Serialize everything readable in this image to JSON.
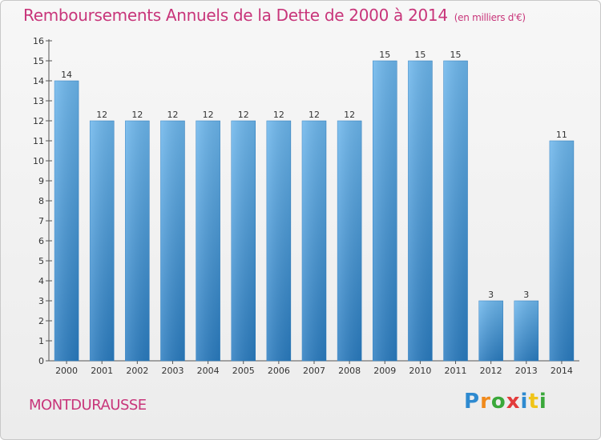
{
  "title": "Remboursements Annuels de la Dette de 2000 à 2014",
  "unit": "(en milliers d'€)",
  "commune": "MONTDURAUSSE",
  "brand": "Proxiti",
  "colors": {
    "bar_light": "#6cb6ec",
    "bar_dark": "#2a7cc0",
    "title": "#c8357a"
  },
  "chart_data": {
    "type": "bar",
    "title": "Remboursements Annuels de la Dette de 2000 à 2014",
    "xlabel": "",
    "ylabel": "",
    "ylim": [
      0,
      16
    ],
    "yticks": [
      0,
      1,
      2,
      3,
      4,
      5,
      6,
      7,
      8,
      9,
      10,
      11,
      12,
      13,
      14,
      15,
      16
    ],
    "grid": false,
    "categories": [
      "2000",
      "2001",
      "2002",
      "2003",
      "2004",
      "2005",
      "2006",
      "2007",
      "2008",
      "2009",
      "2010",
      "2011",
      "2012",
      "2013",
      "2014"
    ],
    "values": [
      14,
      12,
      12,
      12,
      12,
      12,
      12,
      12,
      12,
      15,
      15,
      15,
      3,
      3,
      11
    ]
  }
}
